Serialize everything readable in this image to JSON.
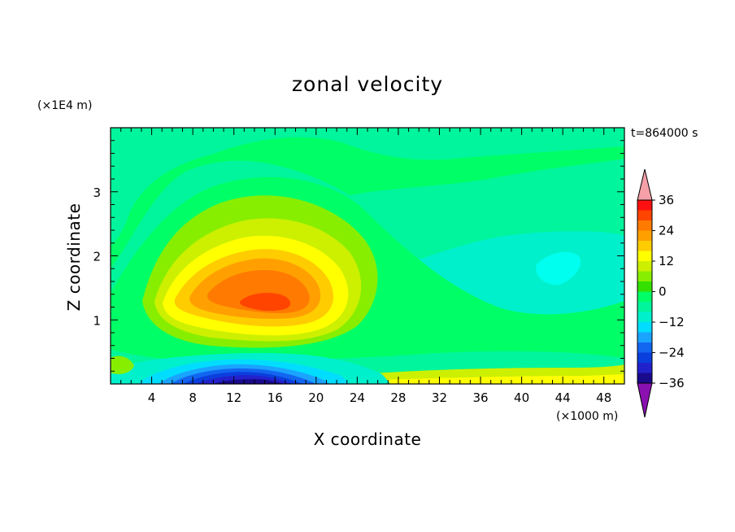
{
  "chart_data": {
    "type": "heatmap",
    "title": "zonal velocity",
    "xlabel": "X coordinate",
    "ylabel": "Z coordinate",
    "x_unit": "(×1000 m)",
    "y_unit": "(×1E4 m)",
    "time_label": "t=864000 s",
    "xlim": [
      0,
      50
    ],
    "ylim": [
      0,
      4
    ],
    "x_ticks": [
      4,
      8,
      12,
      16,
      20,
      24,
      28,
      32,
      36,
      40,
      44,
      48
    ],
    "y_ticks": [
      1,
      2,
      3
    ],
    "colorbar": {
      "levels": [
        -36,
        -32,
        -28,
        -24,
        -20,
        -16,
        -12,
        -8,
        -4,
        0,
        4,
        8,
        12,
        16,
        20,
        24,
        28,
        32,
        36
      ],
      "tick_labels": [
        "36",
        "24",
        "12",
        "0",
        "−12",
        "−24",
        "−36"
      ],
      "colors": [
        "#6a0dad",
        "#1a0a8c",
        "#2222cc",
        "#0b3fdd",
        "#1266f0",
        "#1aa3ff",
        "#00ddff",
        "#00f0cc",
        "#00f59c",
        "#00ff66",
        "#33e000",
        "#88ee00",
        "#ccf000",
        "#ffff00",
        "#ffcc00",
        "#ffa000",
        "#ff7a00",
        "#ff4400",
        "#ff1010",
        "#f5a0a8"
      ],
      "under_color": "#8a10b0",
      "over_color": "#f5a0a8"
    },
    "features": [
      {
        "name": "positive jet core",
        "x": 15,
        "z": 1.3,
        "value": 28
      },
      {
        "name": "negative surface core",
        "x": 14,
        "z": 0.08,
        "value": -32
      },
      {
        "name": "weak negative region",
        "x": 43,
        "z": 1.8,
        "value": -8
      }
    ]
  }
}
